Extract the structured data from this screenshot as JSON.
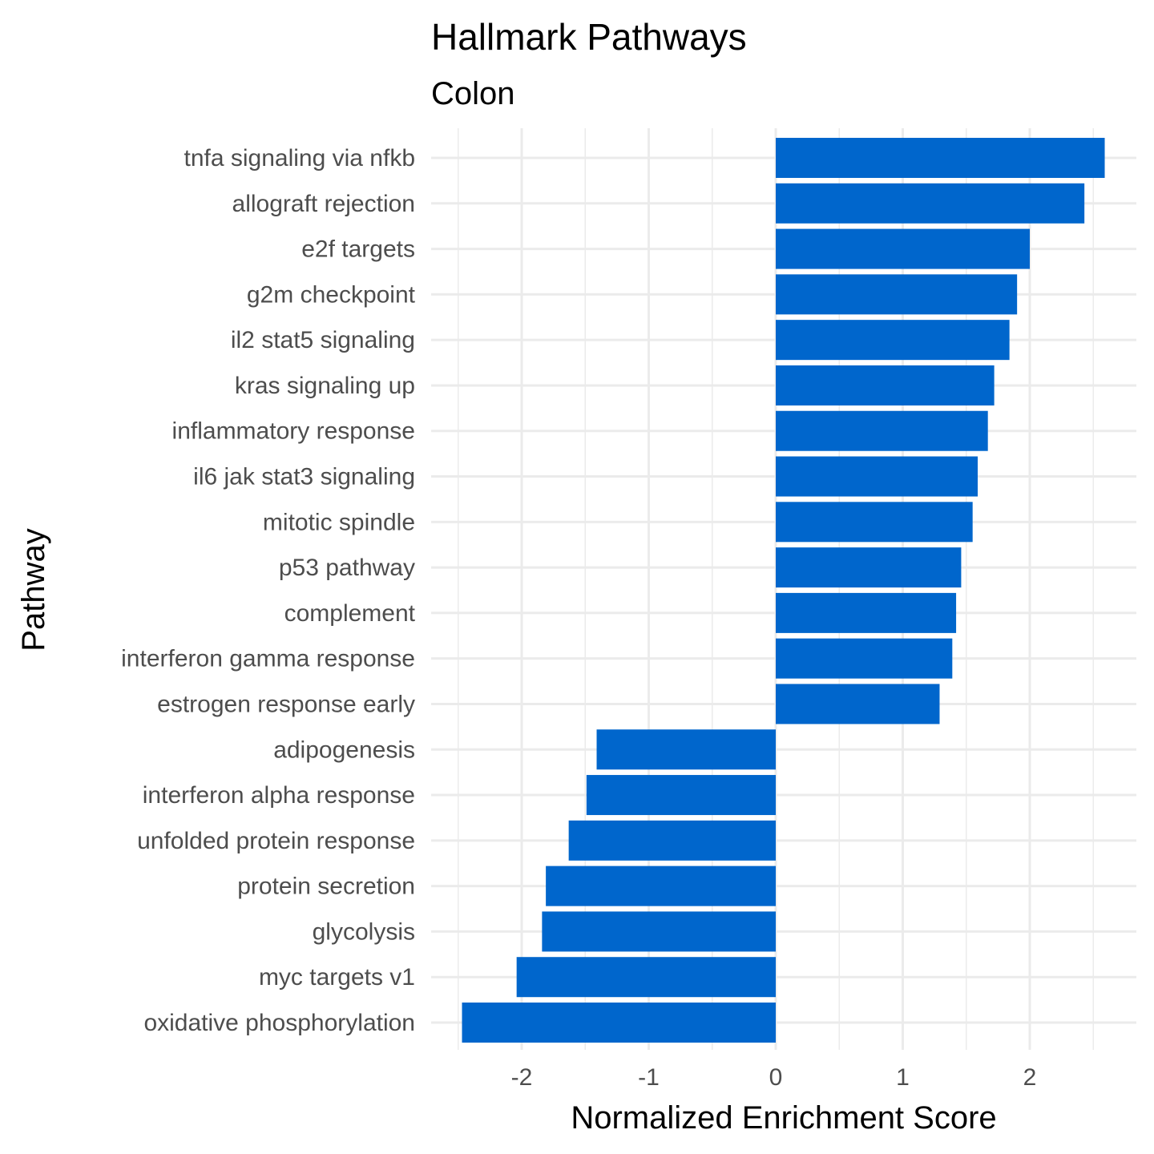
{
  "chart_data": {
    "type": "bar",
    "orientation": "horizontal",
    "title": "Hallmark Pathways",
    "subtitle": "Colon",
    "xlabel": "Normalized Enrichment Score",
    "ylabel": "Pathway",
    "xlim": [
      -2.6,
      2.85
    ],
    "x_ticks": [
      -2,
      -1,
      0,
      1,
      2
    ],
    "x_tick_labels": [
      "-2",
      "-1",
      "0",
      "1",
      "2"
    ],
    "bar_color": "#0066cc",
    "grid": true,
    "categories": [
      "tnfa signaling via nfkb",
      "allograft rejection",
      "e2f targets",
      "g2m checkpoint",
      "il2 stat5 signaling",
      "kras signaling up",
      "inflammatory response",
      "il6 jak stat3 signaling",
      "mitotic spindle",
      "p53 pathway",
      "complement",
      "interferon gamma response",
      "estrogen response early",
      "adipogenesis",
      "interferon alpha response",
      "unfolded protein response",
      "protein secretion",
      "glycolysis",
      "myc targets v1",
      "oxidative phosphorylation"
    ],
    "values": [
      2.59,
      2.43,
      2.0,
      1.9,
      1.84,
      1.72,
      1.67,
      1.59,
      1.55,
      1.46,
      1.42,
      1.39,
      1.29,
      -1.41,
      -1.49,
      -1.63,
      -1.81,
      -1.84,
      -2.04,
      -2.47
    ]
  }
}
